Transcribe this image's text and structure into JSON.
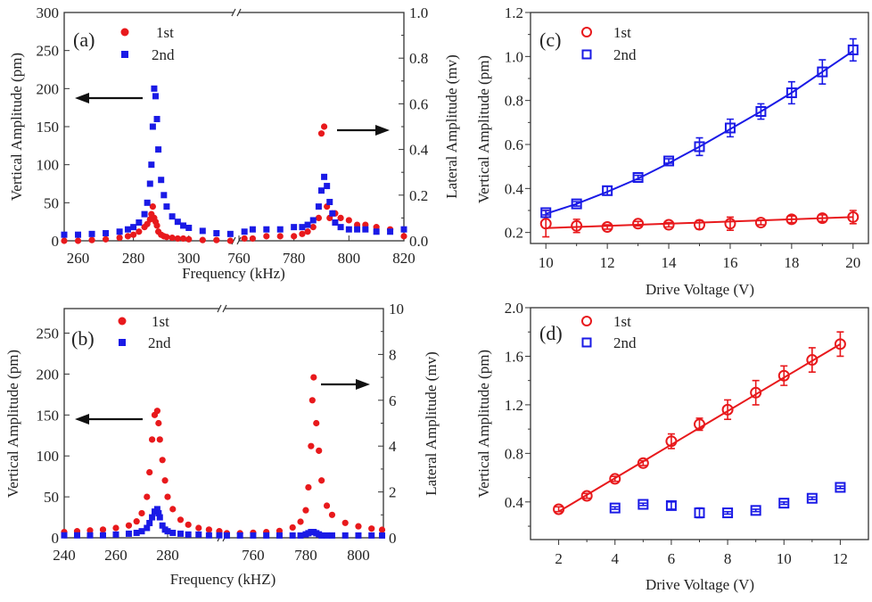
{
  "chart_data": [
    {
      "panel": "(a)",
      "type": "scatter",
      "xlabel": "Frequency (kHz)",
      "ylabel": "Vertical Amplitude (pm)",
      "y2label": "Lateral Amplitude (mv)",
      "broken_x_axis": true,
      "x_segments": [
        [
          255,
          316.5
        ],
        [
          760,
          820
        ]
      ],
      "ylim": [
        0,
        300
      ],
      "y2lim": [
        0,
        1.0
      ],
      "x_ticks": [
        [
          260,
          280,
          300
        ],
        [
          760,
          780,
          800,
          820
        ]
      ],
      "y_ticks": [
        0,
        50,
        100,
        150,
        200,
        250,
        300
      ],
      "y2_ticks": [
        "0.0",
        "0.2",
        "0.4",
        "0.6",
        "0.8",
        "1.0"
      ],
      "legend": [
        "1st",
        "2nd"
      ],
      "legend_placement": "top-left",
      "arrows": [
        "left: low-frequency data on left axis",
        "right: high-frequency data on right axis"
      ],
      "colors": {
        "1st": "#e8191c",
        "2nd": "#1a1ae6"
      },
      "segments": [
        {
          "axis": "left",
          "x": [
            255,
            260,
            265,
            270,
            275,
            278,
            280,
            282,
            284,
            285,
            286,
            286.5,
            287,
            287.5,
            288,
            288.5,
            289,
            290,
            291,
            292,
            294,
            296,
            298,
            300,
            305,
            310,
            315
          ],
          "series": [
            {
              "name": "1st",
              "marker": "filled-circle",
              "values": [
                0,
                0,
                1,
                2,
                4,
                6,
                8,
                12,
                18,
                22,
                28,
                35,
                45,
                30,
                25,
                20,
                12,
                8,
                6,
                5,
                4,
                3,
                3,
                2,
                1,
                1,
                0
              ]
            },
            {
              "name": "2nd",
              "marker": "filled-square",
              "values": [
                8,
                8,
                9,
                10,
                12,
                15,
                18,
                24,
                35,
                50,
                75,
                100,
                150,
                200,
                190,
                160,
                120,
                80,
                60,
                45,
                32,
                25,
                20,
                17,
                13,
                10,
                9
              ]
            }
          ]
        },
        {
          "axis": "right",
          "x": [
            762,
            765,
            770,
            775,
            780,
            783,
            785,
            787,
            789,
            790,
            791,
            792,
            793,
            794,
            795,
            797,
            800,
            803,
            806,
            810,
            815,
            820
          ],
          "series": [
            {
              "name": "1st",
              "marker": "filled-circle",
              "values": [
                0.01,
                0.01,
                0.02,
                0.02,
                0.02,
                0.03,
                0.04,
                0.06,
                0.1,
                0.47,
                0.5,
                0.15,
                0.1,
                0.12,
                0.12,
                0.1,
                0.09,
                0.07,
                0.07,
                0.06,
                0.05,
                0.02
              ]
            },
            {
              "name": "2nd",
              "marker": "filled-square",
              "values": [
                0.04,
                0.05,
                0.05,
                0.05,
                0.06,
                0.06,
                0.07,
                0.09,
                0.15,
                0.22,
                0.28,
                0.24,
                0.17,
                0.12,
                0.08,
                0.06,
                0.05,
                0.05,
                0.05,
                0.04,
                0.04,
                0.05
              ]
            }
          ]
        }
      ]
    },
    {
      "panel": "(b)",
      "type": "scatter",
      "xlabel": "Frequency (kHZ)",
      "ylabel": "Vertical Amplitude (pm)",
      "y2label": "Lateral Amplitude (mv)",
      "broken_x_axis": true,
      "x_segments": [
        [
          240,
          300.7
        ],
        [
          748.5,
          809.5
        ]
      ],
      "ylim": [
        0,
        280
      ],
      "y2lim": [
        0,
        10
      ],
      "x_ticks": [
        [
          240,
          260,
          280
        ],
        [
          760,
          780,
          800
        ]
      ],
      "y_ticks": [
        0,
        50,
        100,
        150,
        200,
        250
      ],
      "y2_ticks": [
        "0",
        "2",
        "4",
        "6",
        "8",
        "10"
      ],
      "legend": [
        "1st",
        "2nd"
      ],
      "legend_placement": "top-left",
      "colors": {
        "1st": "#e8191c",
        "2nd": "#1a1ae6"
      },
      "segments": [
        {
          "axis": "left",
          "x": [
            240,
            245,
            250,
            255,
            260,
            265,
            268,
            270,
            272,
            273,
            274,
            275,
            276,
            276.5,
            277,
            278,
            279,
            280,
            282,
            285,
            288,
            292,
            296,
            300
          ],
          "series": [
            {
              "name": "1st",
              "marker": "filled-circle",
              "values": [
                7,
                8,
                9,
                10,
                12,
                15,
                20,
                30,
                50,
                80,
                120,
                150,
                155,
                140,
                120,
                95,
                70,
                50,
                35,
                22,
                16,
                12,
                10,
                8
              ]
            },
            {
              "name": "2nd",
              "marker": "filled-square",
              "values": [
                3,
                3,
                3,
                3,
                4,
                5,
                6,
                8,
                12,
                18,
                25,
                32,
                35,
                30,
                25,
                15,
                10,
                8,
                6,
                5,
                4,
                4,
                3,
                3
              ]
            }
          ]
        },
        {
          "axis": "right",
          "x": [
            750,
            755,
            760,
            765,
            770,
            775,
            778,
            780,
            781,
            782,
            782.5,
            783,
            784,
            785,
            786,
            788,
            790,
            795,
            800,
            805,
            809
          ],
          "series": [
            {
              "name": "1st",
              "marker": "filled-circle",
              "values": [
                0.2,
                0.2,
                0.22,
                0.25,
                0.3,
                0.45,
                0.7,
                1.2,
                2.2,
                4,
                6,
                7,
                5,
                3.8,
                2.5,
                1.4,
                1.0,
                0.65,
                0.5,
                0.4,
                0.35
              ]
            },
            {
              "name": "2nd",
              "marker": "filled-square",
              "values": [
                0.1,
                0.1,
                0.1,
                0.1,
                0.1,
                0.1,
                0.1,
                0.15,
                0.2,
                0.25,
                0.25,
                0.25,
                0.2,
                0.15,
                0.1,
                0.1,
                0.1,
                0.1,
                0.1,
                0.1,
                0.1
              ]
            }
          ]
        }
      ]
    },
    {
      "panel": "(c)",
      "type": "scatter",
      "xlabel": "Drive Voltage (V)",
      "ylabel": "Vertical Amplitude (pm)",
      "xlim": [
        9.5,
        20.5
      ],
      "ylim": [
        0.15,
        1.2
      ],
      "x_ticks": [
        10,
        12,
        14,
        16,
        18,
        20
      ],
      "y_ticks": [
        "0.2",
        "0.4",
        "0.6",
        "0.8",
        "1.0",
        "1.2"
      ],
      "legend": [
        "1st",
        "2nd"
      ],
      "legend_placement": "top-left",
      "colors": {
        "1st": "#e8191c",
        "2nd": "#1a1ae6"
      },
      "x": [
        10,
        11,
        12,
        13,
        14,
        15,
        16,
        17,
        18,
        19,
        20
      ],
      "series": [
        {
          "name": "1st",
          "marker": "open-circle",
          "values": [
            0.24,
            0.23,
            0.225,
            0.24,
            0.235,
            0.235,
            0.24,
            0.245,
            0.26,
            0.265,
            0.27
          ],
          "errors": [
            0.06,
            0.03,
            0.01,
            0.01,
            0.01,
            0.02,
            0.03,
            0.01,
            0.015,
            0.015,
            0.03
          ],
          "fit": [
            0.22,
            0.225,
            0.23,
            0.235,
            0.24,
            0.245,
            0.25,
            0.255,
            0.26,
            0.265,
            0.27
          ]
        },
        {
          "name": "2nd",
          "marker": "open-square",
          "values": [
            0.29,
            0.33,
            0.39,
            0.45,
            0.525,
            0.59,
            0.675,
            0.75,
            0.835,
            0.93,
            1.03
          ],
          "errors": [
            0.01,
            0.01,
            0.02,
            0.01,
            0.01,
            0.04,
            0.04,
            0.035,
            0.05,
            0.055,
            0.05
          ],
          "fit": [
            0.285,
            0.33,
            0.385,
            0.445,
            0.515,
            0.59,
            0.67,
            0.75,
            0.835,
            0.93,
            1.025
          ]
        }
      ]
    },
    {
      "panel": "(d)",
      "type": "scatter",
      "xlabel": "Drive Voltage (V)",
      "ylabel": "Vertical Amplitude (pm)",
      "xlim": [
        1,
        13
      ],
      "ylim": [
        0.09,
        2.0
      ],
      "x_ticks": [
        2,
        4,
        6,
        8,
        10,
        12
      ],
      "y_ticks": [
        "0.4",
        "0.8",
        "1.2",
        "1.6",
        "2.0"
      ],
      "legend": [
        "1st",
        "2nd"
      ],
      "legend_placement": "top-left",
      "colors": {
        "1st": "#e8191c",
        "2nd": "#1a1ae6"
      },
      "series": [
        {
          "name": "1st",
          "marker": "open-circle",
          "x": [
            2,
            3,
            4,
            5,
            6,
            7,
            8,
            9,
            10,
            11,
            12
          ],
          "values": [
            0.34,
            0.45,
            0.59,
            0.72,
            0.9,
            1.04,
            1.16,
            1.3,
            1.44,
            1.57,
            1.7
          ],
          "errors": [
            0.02,
            0.02,
            0.02,
            0.02,
            0.06,
            0.05,
            0.08,
            0.1,
            0.08,
            0.1,
            0.1
          ],
          "fit": [
            0.32,
            0.458,
            0.596,
            0.734,
            0.872,
            1.01,
            1.148,
            1.286,
            1.424,
            1.562,
            1.7
          ]
        },
        {
          "name": "2nd",
          "marker": "open-square",
          "x": [
            4,
            5,
            6,
            7,
            8,
            9,
            10,
            11,
            12
          ],
          "values": [
            0.35,
            0.38,
            0.37,
            0.31,
            0.31,
            0.33,
            0.39,
            0.43,
            0.52
          ],
          "errors": [
            0.01,
            0.01,
            0.03,
            0.04,
            0.01,
            0.01,
            0.01,
            0.01,
            0.01
          ]
        }
      ]
    }
  ]
}
